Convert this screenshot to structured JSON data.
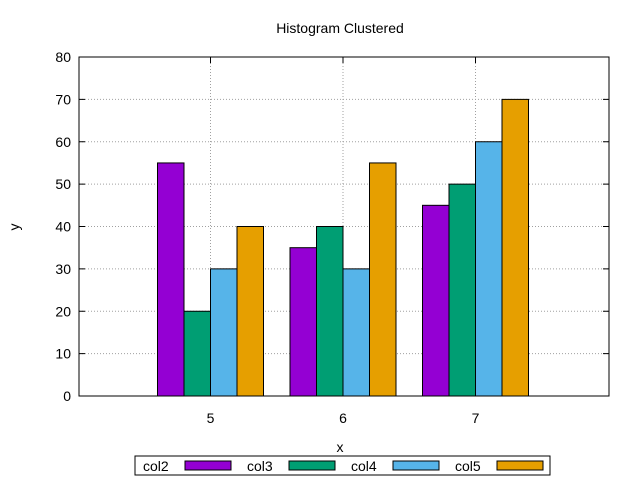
{
  "chart_data": {
    "type": "bar",
    "title": "Histogram Clustered",
    "xlabel": "x",
    "ylabel": "y",
    "categories": [
      "5",
      "6",
      "7"
    ],
    "ylim": [
      0,
      80
    ],
    "yticks": [
      0,
      10,
      20,
      30,
      40,
      50,
      60,
      70,
      80
    ],
    "grid": true,
    "legend_position": "bottom",
    "series": [
      {
        "name": "col2",
        "values": [
          55,
          35,
          45
        ],
        "color": "#9400d3"
      },
      {
        "name": "col3",
        "values": [
          20,
          40,
          50
        ],
        "color": "#009e73"
      },
      {
        "name": "col4",
        "values": [
          30,
          30,
          60
        ],
        "color": "#56b4e9"
      },
      {
        "name": "col5",
        "values": [
          40,
          55,
          70
        ],
        "color": "#e69f00"
      }
    ]
  }
}
